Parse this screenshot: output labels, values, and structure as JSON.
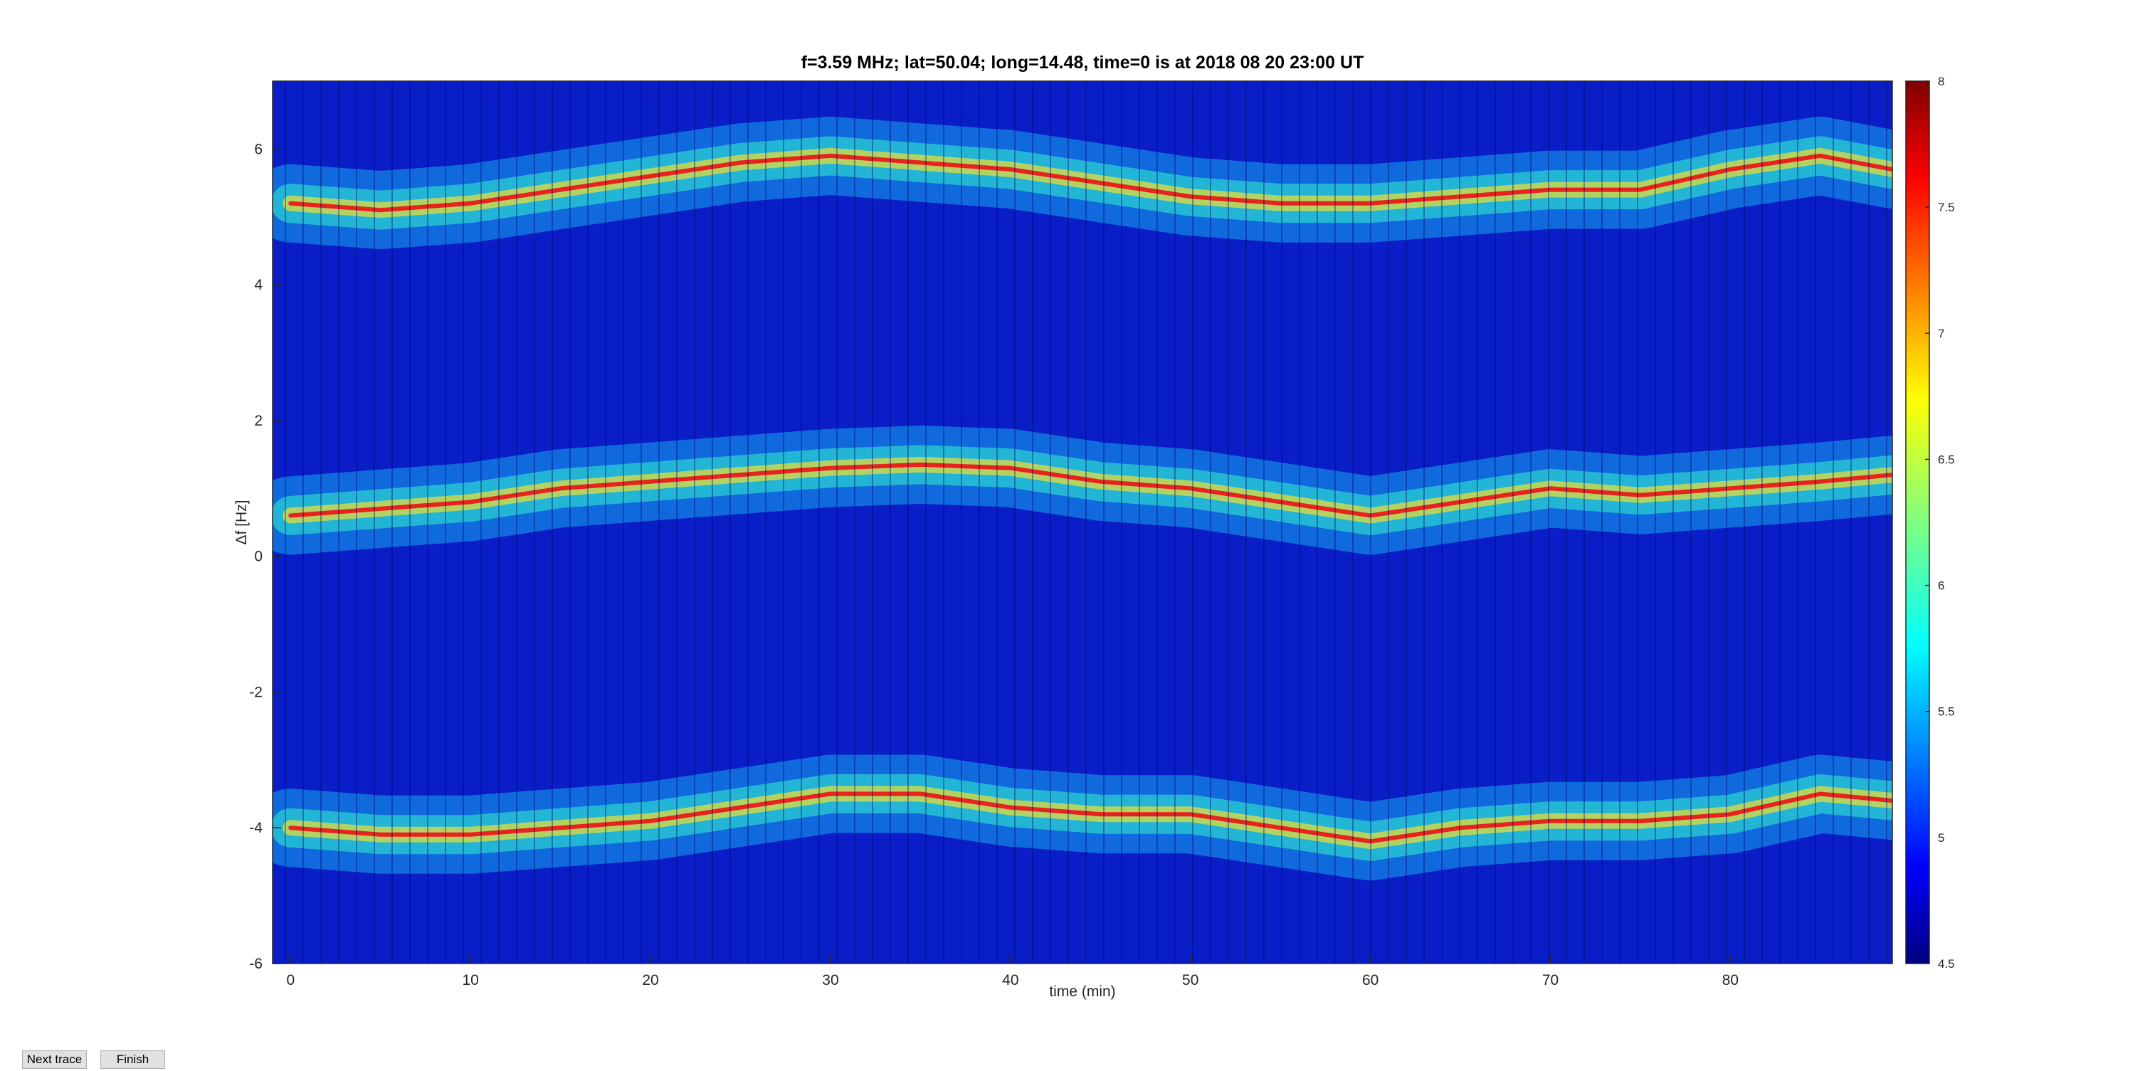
{
  "chart_data": {
    "type": "spectrogram",
    "title": "f=3.59 MHz;  lat=50.04; long=14.48, time=0 is at 2018 08 20 23:00 UT",
    "x_label": "time (min)",
    "y_label": "Δf [Hz]",
    "xlim": [
      -1,
      89
    ],
    "xticks": [
      0,
      10,
      20,
      30,
      40,
      50,
      60,
      70,
      80
    ],
    "ylim": [
      -6,
      7
    ],
    "yticks": [
      -6,
      -4,
      -2,
      0,
      2,
      4,
      6
    ],
    "clim": [
      4.5,
      8
    ],
    "cticks": [
      4.5,
      5,
      5.5,
      6,
      6.5,
      7,
      7.5,
      8
    ],
    "x": [
      0,
      5,
      10,
      15,
      20,
      25,
      30,
      35,
      40,
      45,
      50,
      55,
      60,
      65,
      70,
      75,
      80,
      85,
      89
    ],
    "series": [
      {
        "color": "#e8221c",
        "values": [
          5.2,
          5.1,
          5.2,
          5.4,
          5.6,
          5.8,
          5.9,
          5.8,
          5.7,
          5.5,
          5.3,
          5.2,
          5.2,
          5.3,
          5.4,
          5.4,
          5.7,
          5.9,
          5.7
        ]
      },
      {
        "color": "#e8221c",
        "values": [
          0.6,
          0.7,
          0.8,
          1.0,
          1.1,
          1.2,
          1.3,
          1.35,
          1.3,
          1.1,
          1.0,
          0.8,
          0.6,
          0.8,
          1.0,
          0.9,
          1.0,
          1.1,
          1.2
        ]
      },
      {
        "color": "#e8221c",
        "values": [
          -4.0,
          -4.1,
          -4.1,
          -4.0,
          -3.9,
          -3.7,
          -3.5,
          -3.5,
          -3.7,
          -3.8,
          -3.8,
          -4.0,
          -4.2,
          -4.0,
          -3.9,
          -3.9,
          -3.8,
          -3.5,
          -3.6
        ]
      }
    ]
  },
  "buttons": [
    "Next trace",
    "Finish"
  ]
}
